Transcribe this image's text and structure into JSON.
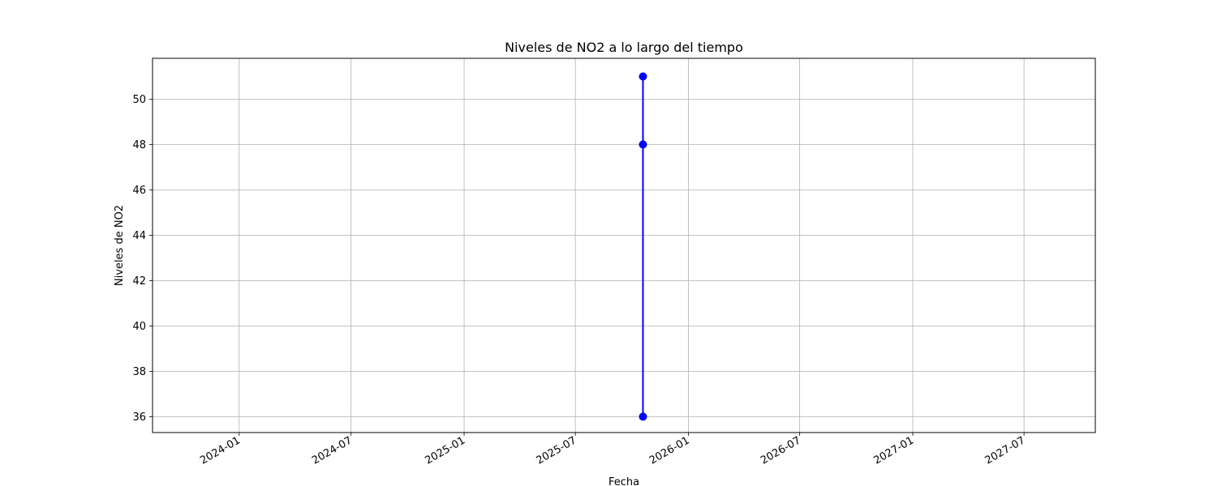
{
  "chart_data": {
    "type": "line",
    "title": "Niveles de NO2 a lo largo del tiempo",
    "xlabel": "Fecha",
    "ylabel": "Niveles de NO2",
    "x_type": "date",
    "xlim": [
      "2023-08-13",
      "2027-10-25"
    ],
    "ylim": [
      35.3,
      51.8
    ],
    "x_ticks": [
      "2024-01",
      "2024-07",
      "2025-01",
      "2025-07",
      "2026-01",
      "2026-07",
      "2027-01",
      "2027-07"
    ],
    "y_ticks": [
      36,
      38,
      40,
      42,
      44,
      46,
      48,
      50
    ],
    "grid": true,
    "series": [
      {
        "color": "#0000ff",
        "marker": "circle",
        "x": [
          "2025-10-19",
          "2025-10-19",
          "2025-10-19"
        ],
        "y": [
          51,
          48,
          36
        ]
      }
    ]
  }
}
